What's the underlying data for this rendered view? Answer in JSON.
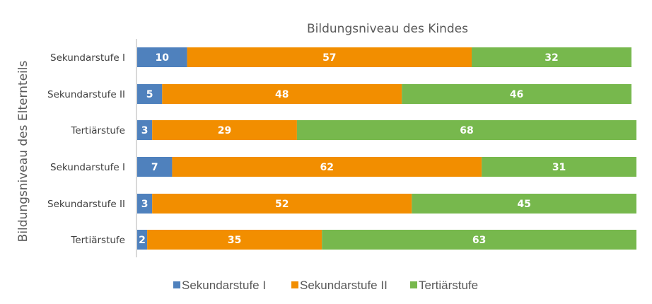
{
  "chart_data": {
    "type": "bar",
    "orientation": "horizontal",
    "stacked": true,
    "title": "Bildungsniveau des Kindes",
    "xlabel": "",
    "ylabel": "Bildungsniveau des Elternteils",
    "categories": [
      "Sekundarstufe I",
      "Sekundarstufe II",
      "Tertiärstufe",
      "Sekundarstufe I",
      "Sekundarstufe II",
      "Tertiärstufe"
    ],
    "series": [
      {
        "name": "Sekundarstufe I",
        "color": "#4f81bd",
        "values": [
          10,
          5,
          3,
          7,
          3,
          2
        ]
      },
      {
        "name": "Sekundarstufe II",
        "color": "#f28e00",
        "values": [
          57,
          48,
          29,
          62,
          52,
          35
        ]
      },
      {
        "name": "Tertiärstufe",
        "color": "#77b84d",
        "values": [
          32,
          46,
          68,
          31,
          45,
          63
        ]
      }
    ],
    "xlim": [
      0,
      100
    ],
    "grid": false,
    "legend": "bottom",
    "data_labels": true
  }
}
